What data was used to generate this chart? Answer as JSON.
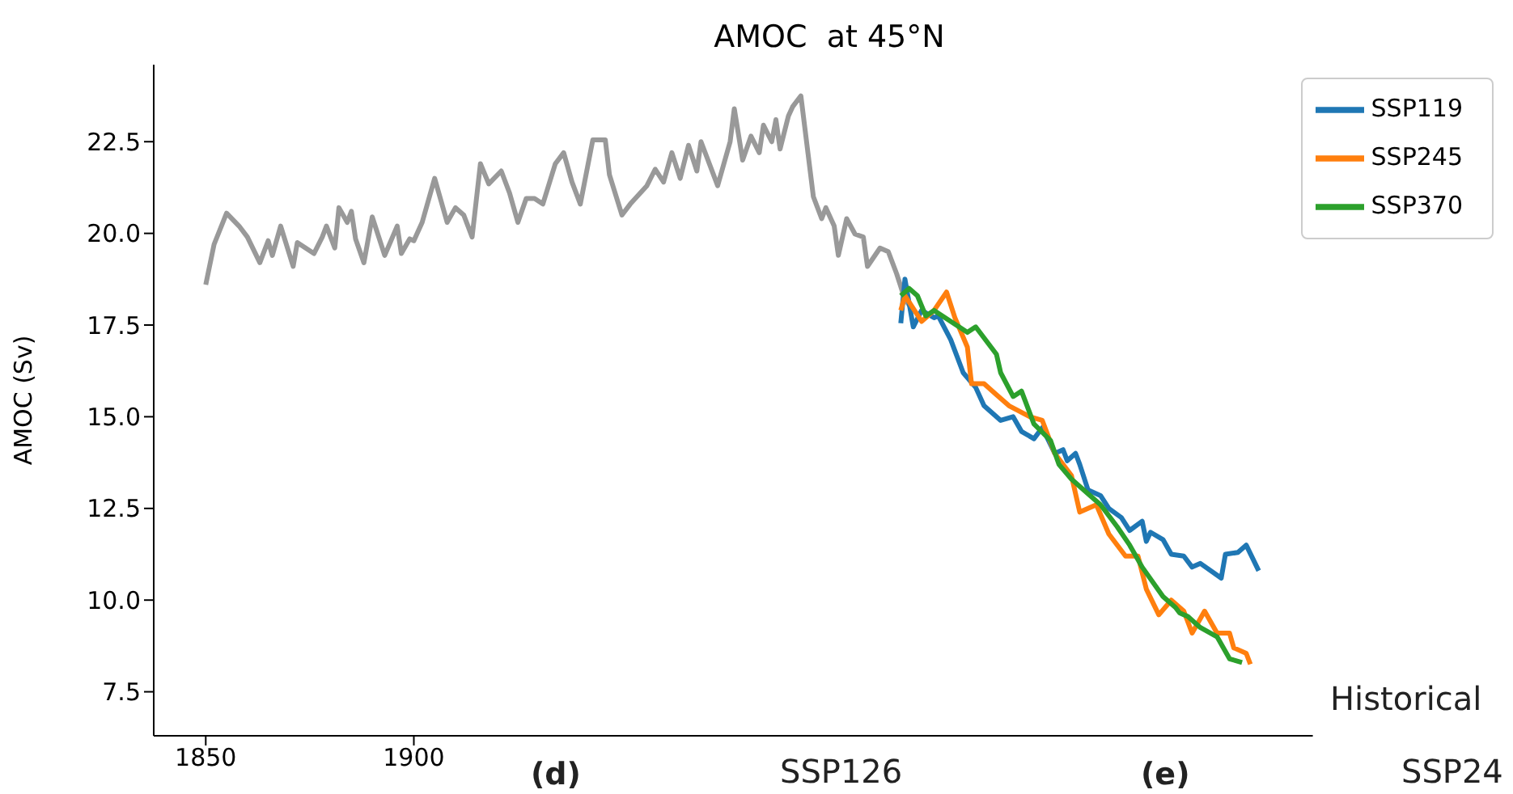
{
  "chart_data": {
    "type": "line",
    "title": "AMOC  at 45°N",
    "ylabel": "AMOC (Sv)",
    "xlim": [
      1837.5,
      2116
    ],
    "xticks": [
      1850,
      1900
    ],
    "ylim": [
      6.3,
      24.6
    ],
    "yticks": [
      7.5,
      {
        "value": 10,
        "label": "10.0"
      },
      12.5,
      {
        "value": 15,
        "label": "15.0"
      },
      17.5,
      {
        "value": 20,
        "label": "20.0"
      },
      22.5
    ],
    "grid": false,
    "legend": "top right",
    "line_style": "solid",
    "marker": "none",
    "series": [
      {
        "color": "#999999",
        "x": [
          1850,
          1852,
          1855,
          1858,
          1860,
          1863,
          1865,
          1866,
          1868,
          1871,
          1872,
          1876,
          1878,
          1879,
          1881,
          1882,
          1884,
          1885,
          1886,
          1888,
          1890,
          1893,
          1896,
          1897,
          1899,
          1900,
          1902,
          1905,
          1908,
          1910,
          1912,
          1914,
          1916,
          1918,
          1921,
          1923,
          1925,
          1927,
          1929,
          1931,
          1934,
          1936,
          1938,
          1940,
          1943,
          1946,
          1947,
          1950,
          1952,
          1956,
          1958,
          1960,
          1962,
          1964,
          1966,
          1968,
          1969,
          1973,
          1976,
          1977,
          1979,
          1981,
          1983,
          1984,
          1986,
          1987,
          1988,
          1990,
          1991,
          1993,
          1996,
          1998,
          1999,
          2001,
          2002,
          2004,
          2006,
          2008,
          2009,
          2012,
          2014,
          2016,
          2018,
          2020
        ],
        "values": [
          18.6,
          19.7,
          20.55,
          20.2,
          19.9,
          19.2,
          19.8,
          19.4,
          20.2,
          19.1,
          19.75,
          19.45,
          19.9,
          20.2,
          19.6,
          20.7,
          20.3,
          20.6,
          19.85,
          19.2,
          20.45,
          19.4,
          20.2,
          19.45,
          19.85,
          19.8,
          20.3,
          21.5,
          20.3,
          20.7,
          20.5,
          19.9,
          21.9,
          21.35,
          21.7,
          21.1,
          20.3,
          20.95,
          20.95,
          20.8,
          21.9,
          22.2,
          21.4,
          20.8,
          22.55,
          22.55,
          21.6,
          20.5,
          20.8,
          21.3,
          21.75,
          21.4,
          22.2,
          21.5,
          22.4,
          21.7,
          22.5,
          21.3,
          22.5,
          23.4,
          22.0,
          22.65,
          22.2,
          22.95,
          22.5,
          23.1,
          22.3,
          23.2,
          23.45,
          23.75,
          21.0,
          20.4,
          20.7,
          20.2,
          19.4,
          20.4,
          19.98,
          19.9,
          19.1,
          19.6,
          19.5,
          18.9,
          18.2,
          17.9
        ]
      },
      {
        "name": "SSP119",
        "color": "#1f77b4",
        "x": [
          2017,
          2018,
          2020,
          2022,
          2025,
          2026,
          2029,
          2032,
          2035,
          2037,
          2041,
          2044,
          2046,
          2049,
          2051,
          2054,
          2056,
          2057,
          2059,
          2060,
          2062,
          2065,
          2067,
          2070,
          2072,
          2075,
          2076,
          2077,
          2080,
          2082,
          2085,
          2087,
          2089,
          2094,
          2095,
          2098,
          2100,
          2103
        ],
        "values": [
          17.55,
          18.75,
          17.45,
          17.9,
          17.7,
          17.75,
          17.1,
          16.2,
          15.8,
          15.3,
          14.9,
          15.0,
          14.6,
          14.4,
          14.7,
          14.0,
          14.1,
          13.8,
          14.0,
          13.7,
          13.0,
          12.85,
          12.5,
          12.25,
          11.9,
          12.15,
          11.6,
          11.85,
          11.65,
          11.25,
          11.2,
          10.9,
          11.0,
          10.6,
          11.25,
          11.3,
          11.5,
          10.8
        ]
      },
      {
        "name": "SSP245",
        "color": "#ff7f0e",
        "x": [
          2017,
          2018,
          2022,
          2025,
          2028,
          2030,
          2033,
          2034,
          2037,
          2040,
          2043,
          2048,
          2051,
          2054,
          2058,
          2060,
          2064,
          2067,
          2071,
          2074,
          2076,
          2079,
          2082,
          2085,
          2087,
          2090,
          2093,
          2096,
          2097,
          2100,
          2101
        ],
        "values": [
          17.9,
          18.3,
          17.6,
          17.9,
          18.4,
          17.7,
          16.9,
          15.9,
          15.9,
          15.6,
          15.3,
          15.0,
          14.9,
          14.0,
          13.4,
          12.4,
          12.6,
          11.8,
          11.2,
          11.2,
          10.3,
          9.6,
          10.0,
          9.7,
          9.1,
          9.7,
          9.1,
          9.1,
          8.7,
          8.55,
          8.25
        ]
      },
      {
        "name": "SSP370",
        "color": "#2ca02c",
        "x": [
          2017,
          2019,
          2021,
          2023,
          2025,
          2029,
          2033,
          2035,
          2040,
          2041,
          2044,
          2046,
          2049,
          2053,
          2055,
          2058,
          2062,
          2065,
          2069,
          2072,
          2075,
          2080,
          2083,
          2084,
          2086,
          2089,
          2093,
          2096,
          2099
        ],
        "values": [
          18.3,
          18.5,
          18.3,
          17.75,
          17.9,
          17.6,
          17.3,
          17.45,
          16.7,
          16.2,
          15.55,
          15.7,
          14.8,
          14.35,
          13.7,
          13.3,
          12.9,
          12.6,
          12.0,
          11.5,
          10.9,
          10.1,
          9.8,
          9.65,
          9.55,
          9.25,
          9.0,
          8.4,
          8.3
        ]
      }
    ],
    "annotations": [
      "Historical",
      "(d)",
      "SSP126",
      "(e)",
      "SSP24"
    ]
  }
}
